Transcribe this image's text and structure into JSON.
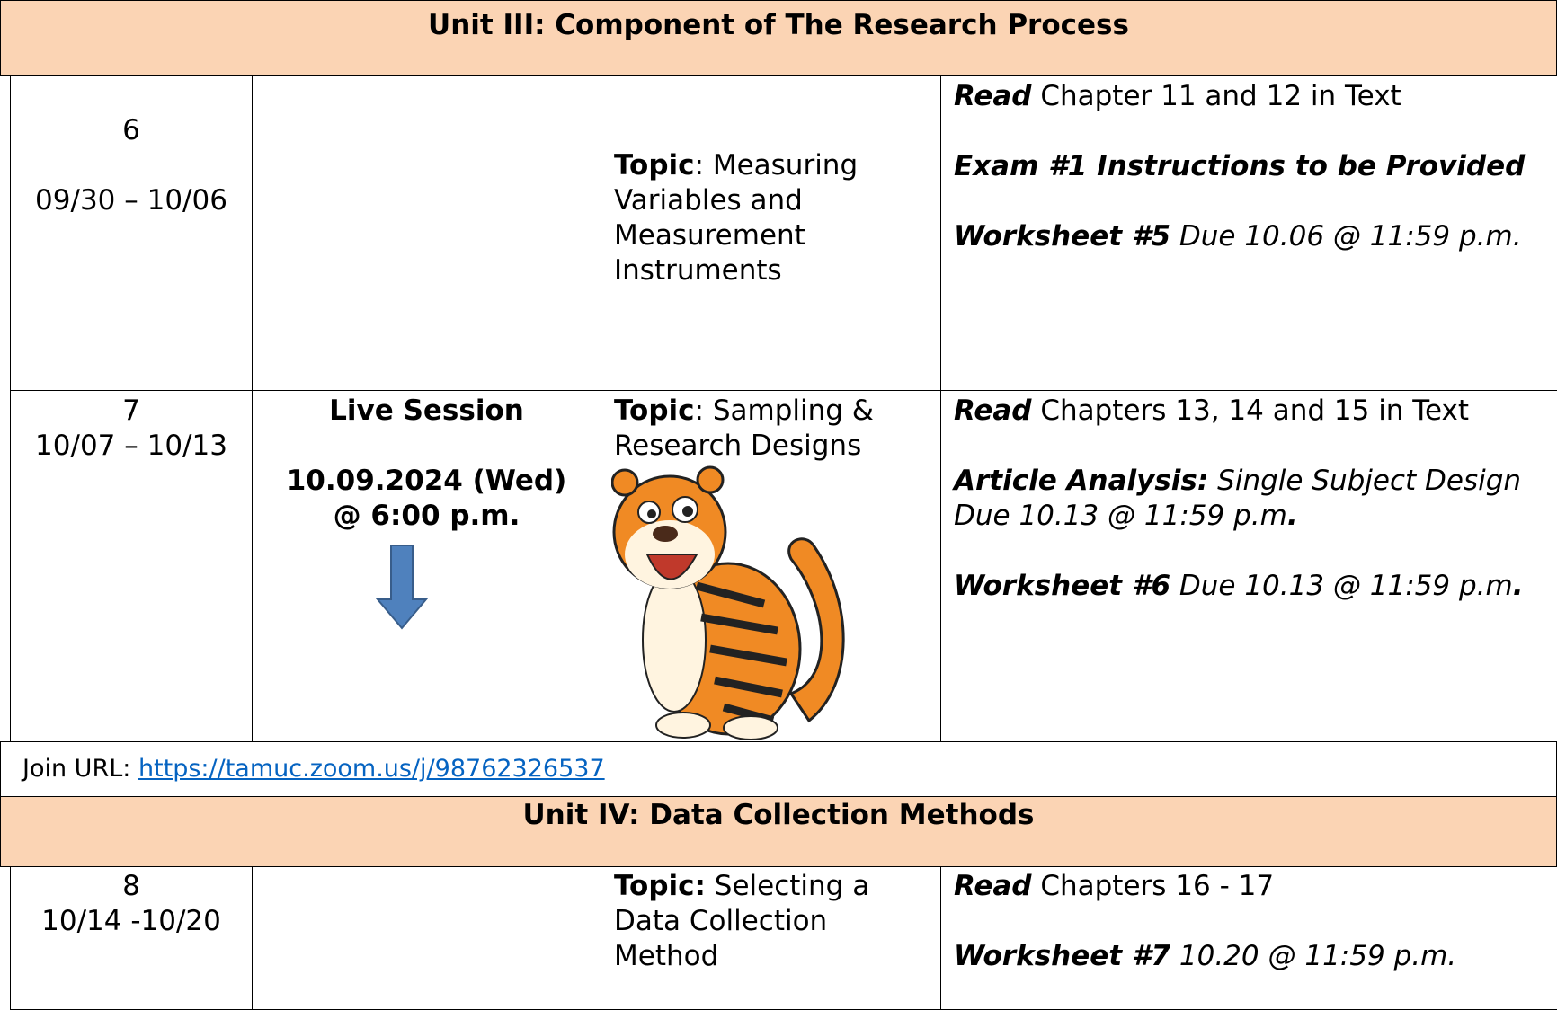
{
  "units": [
    {
      "title": "Unit III: Component of The Research Process"
    },
    {
      "title": "Unit IV: Data Collection Methods"
    }
  ],
  "rows": [
    {
      "week": "6",
      "dates": "09/30 – 10/06",
      "topic_label": "Topic",
      "topic": ": Measuring Variables and Measurement Instruments",
      "assignments": [
        [
          "Read",
          " Chapter 11 and 12 in Text"
        ],
        [
          "Exam #1 Instructions to be Provided"
        ],
        [
          "Worksheet #5",
          " Due 10.06 @ 11:59 p.m."
        ]
      ]
    },
    {
      "week": "7",
      "dates": "10/07 – 10/13",
      "session": [
        "Live Session",
        "10.09.2024 (Wed) @ 6:00 p.m."
      ],
      "topic_label": "Topic",
      "topic": ": Sampling & Research Designs",
      "assignments": [
        [
          "Read",
          " Chapters 13, 14 and 15 in Text"
        ],
        [
          "Article Analysis:",
          " Single Subject Design Due 10.13 @ 11:59 p.m",
          "."
        ],
        [
          "Worksheet #6",
          " Due 10.13 @ 11:59 p.m",
          "."
        ]
      ]
    },
    {
      "week": "8",
      "dates": "10/14 -10/20",
      "topic_label": "Topic:",
      "topic": " Selecting a Data Collection Method",
      "assignments": [
        [
          "Read",
          " Chapters 16 - 17"
        ],
        [
          "Worksheet #7",
          " 10.20 @ 11:59 p.m."
        ]
      ]
    }
  ],
  "join": {
    "label": "Join URL: ",
    "url": "https://tamuc.zoom.us/j/98762326537"
  }
}
